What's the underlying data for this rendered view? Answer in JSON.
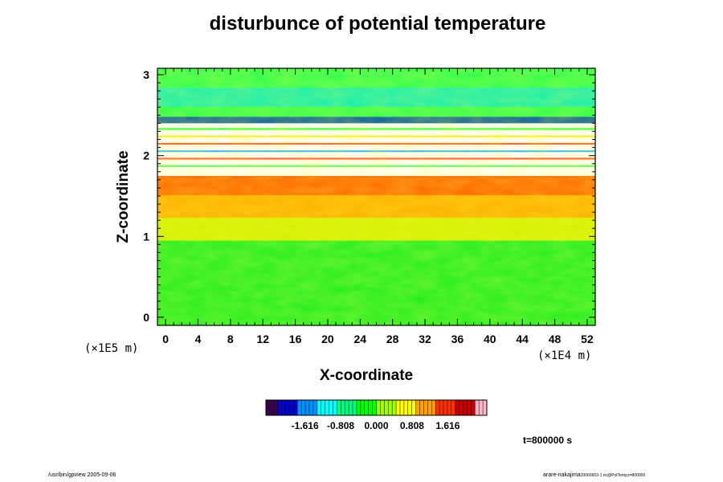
{
  "chart_data": {
    "type": "heatmap",
    "title": "disturbunce of potential temperature",
    "xlabel": "X-coordinate",
    "ylabel": "Z-coordinate",
    "x_unit": "(×1E4 m)",
    "y_unit": "(×1E5 m)",
    "xlim": [
      -1,
      53
    ],
    "ylim": [
      -0.1,
      3.08
    ],
    "x_ticks": [
      "0",
      "4",
      "8",
      "12",
      "16",
      "20",
      "24",
      "28",
      "32",
      "36",
      "40",
      "44",
      "48",
      "52"
    ],
    "y_ticks": [
      "0",
      "1",
      "2",
      "3"
    ],
    "colorbar": {
      "ticks": [
        "-1.616",
        "-0.808",
        "0.000",
        "0.808",
        "1.616"
      ],
      "range": [
        -2.5,
        2.5
      ],
      "colormap": [
        "#3a0050",
        "#0000c8",
        "#0090ff",
        "#00ffff",
        "#00ff80",
        "#00ff00",
        "#a0ff00",
        "#ffff00",
        "#ffa000",
        "#ff3000",
        "#c80000",
        "#ffb4c8"
      ]
    },
    "field": {
      "top_layer": {
        "z_range": [
          2.45,
          3.08
        ],
        "value": -0.3,
        "description_colors": "cyan-blue-green"
      },
      "saturated_band": {
        "z_range": [
          1.75,
          2.4
        ],
        "value": "out-of-range (white)"
      },
      "warm_layer": {
        "z_range": [
          0.95,
          1.75
        ],
        "value": 1.2
      },
      "lower_layer": {
        "z_range": [
          -0.1,
          0.95
        ],
        "value": 0.0
      }
    },
    "annotation": "t=800000 s"
  },
  "footer": {
    "left": "/usr/bin/gpview 2005-09-06",
    "right": "arare-nakajima",
    "right_small": "20060603-1.nc@PotTemp,t=800000"
  }
}
